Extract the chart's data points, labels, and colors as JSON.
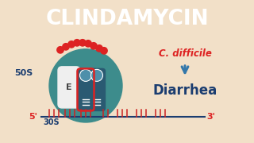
{
  "title": "CLINDAMYCIN",
  "title_bg": "#1b3d70",
  "title_color": "#ffffff",
  "body_bg": "#f2e0c8",
  "teal_circle_color": "#3d8c8c",
  "ribosome_e_color": "#efefef",
  "ribosome_e_text": "E",
  "peptide_color": "#2a5a72",
  "blue_circle_color": "#4d8faa",
  "red_dot_color": "#dd2222",
  "line_color": "#1b3d70",
  "label_50s": "50S",
  "label_30s": "30S",
  "label_5prime": "5'",
  "label_3prime": "3'",
  "c_difficile_text": "C. difficile",
  "c_difficile_color": "#dd2222",
  "arrow_color": "#3377aa",
  "diarrhea_text": "Diarrhea",
  "diarrhea_color": "#1b3d70",
  "tick_color": "#cc2222"
}
